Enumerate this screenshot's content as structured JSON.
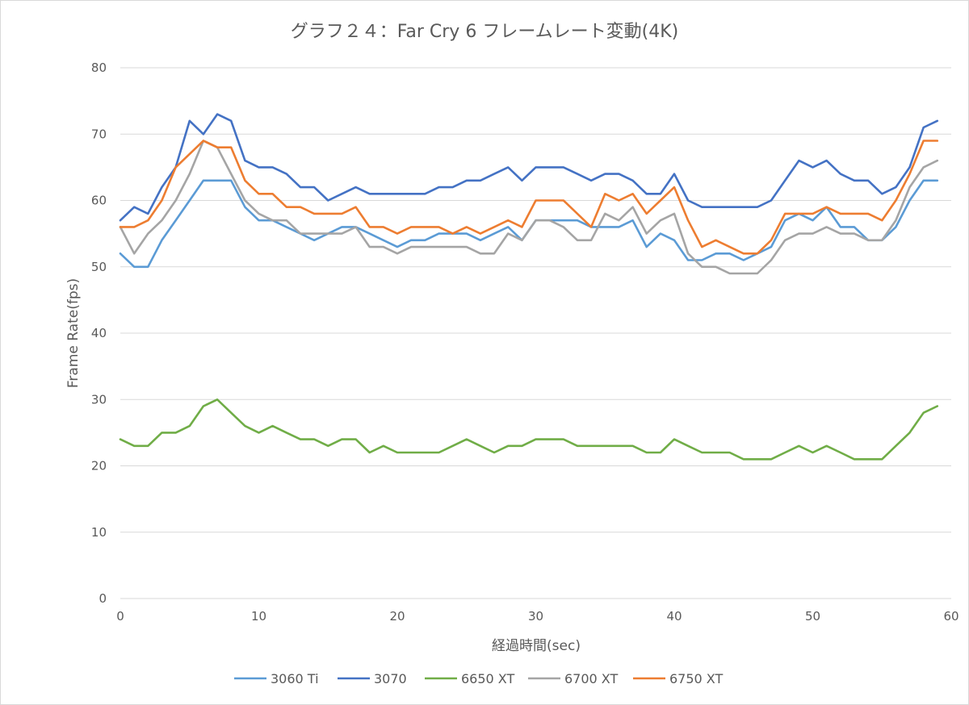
{
  "chart_data": {
    "type": "line",
    "title": "グラフ２４：Far Cry 6 フレームレート変動(4K)",
    "xlabel": "経過時間(sec)",
    "ylabel": "Frame Rate(fps)",
    "xlim": [
      0,
      60
    ],
    "ylim": [
      0,
      80
    ],
    "x_ticks": [
      "0",
      "10",
      "20",
      "30",
      "40",
      "50",
      "60"
    ],
    "y_ticks": [
      "0",
      "10",
      "20",
      "30",
      "40",
      "50",
      "60",
      "70",
      "80"
    ],
    "grid": "horizontal",
    "legend_position": "bottom",
    "x": [
      0,
      1,
      2,
      3,
      4,
      5,
      6,
      7,
      8,
      9,
      10,
      11,
      12,
      13,
      14,
      15,
      16,
      17,
      18,
      19,
      20,
      21,
      22,
      23,
      24,
      25,
      26,
      27,
      28,
      29,
      30,
      31,
      32,
      33,
      34,
      35,
      36,
      37,
      38,
      39,
      40,
      41,
      42,
      43,
      44,
      45,
      46,
      47,
      48,
      49,
      50,
      51,
      52,
      53,
      54,
      55,
      56,
      57,
      58,
      59
    ],
    "series": [
      {
        "name": "3060 Ti",
        "color": "#5b9bd5",
        "values": [
          52,
          50,
          50,
          54,
          57,
          60,
          63,
          63,
          63,
          59,
          57,
          57,
          56,
          55,
          54,
          55,
          56,
          56,
          55,
          54,
          53,
          54,
          54,
          55,
          55,
          55,
          54,
          55,
          56,
          54,
          57,
          57,
          57,
          57,
          56,
          56,
          56,
          57,
          53,
          55,
          54,
          51,
          51,
          52,
          52,
          51,
          52,
          53,
          57,
          58,
          57,
          59,
          56,
          56,
          54,
          54,
          56,
          60,
          63,
          63
        ]
      },
      {
        "name": "3070",
        "color": "#4472c4",
        "values": [
          57,
          59,
          58,
          62,
          65,
          72,
          70,
          73,
          72,
          66,
          65,
          65,
          64,
          62,
          62,
          60,
          61,
          62,
          61,
          61,
          61,
          61,
          61,
          62,
          62,
          63,
          63,
          64,
          65,
          63,
          65,
          65,
          65,
          64,
          63,
          64,
          64,
          63,
          61,
          61,
          64,
          60,
          59,
          59,
          59,
          59,
          59,
          60,
          63,
          66,
          65,
          66,
          64,
          63,
          63,
          61,
          62,
          65,
          71,
          72
        ]
      },
      {
        "name": "6650 XT",
        "color": "#70ad47",
        "values": [
          24,
          23,
          23,
          25,
          25,
          26,
          29,
          30,
          28,
          26,
          25,
          26,
          25,
          24,
          24,
          23,
          24,
          24,
          22,
          23,
          22,
          22,
          22,
          22,
          23,
          24,
          23,
          22,
          23,
          23,
          24,
          24,
          24,
          23,
          23,
          23,
          23,
          23,
          22,
          22,
          24,
          23,
          22,
          22,
          22,
          21,
          21,
          21,
          22,
          23,
          22,
          23,
          22,
          21,
          21,
          21,
          23,
          25,
          28,
          29
        ]
      },
      {
        "name": "6700 XT",
        "color": "#a5a5a5",
        "values": [
          56,
          52,
          55,
          57,
          60,
          64,
          69,
          68,
          64,
          60,
          58,
          57,
          57,
          55,
          55,
          55,
          55,
          56,
          53,
          53,
          52,
          53,
          53,
          53,
          53,
          53,
          52,
          52,
          55,
          54,
          57,
          57,
          56,
          54,
          54,
          58,
          57,
          59,
          55,
          57,
          58,
          52,
          50,
          50,
          49,
          49,
          49,
          51,
          54,
          55,
          55,
          56,
          55,
          55,
          54,
          54,
          57,
          62,
          65,
          66
        ]
      },
      {
        "name": "6750 XT",
        "color": "#ed7d31",
        "values": [
          56,
          56,
          57,
          60,
          65,
          67,
          69,
          68,
          68,
          63,
          61,
          61,
          59,
          59,
          58,
          58,
          58,
          59,
          56,
          56,
          55,
          56,
          56,
          56,
          55,
          56,
          55,
          56,
          57,
          56,
          60,
          60,
          60,
          58,
          56,
          61,
          60,
          61,
          58,
          60,
          62,
          57,
          53,
          54,
          53,
          52,
          52,
          54,
          58,
          58,
          58,
          59,
          58,
          58,
          58,
          57,
          60,
          64,
          69,
          69
        ]
      }
    ]
  }
}
